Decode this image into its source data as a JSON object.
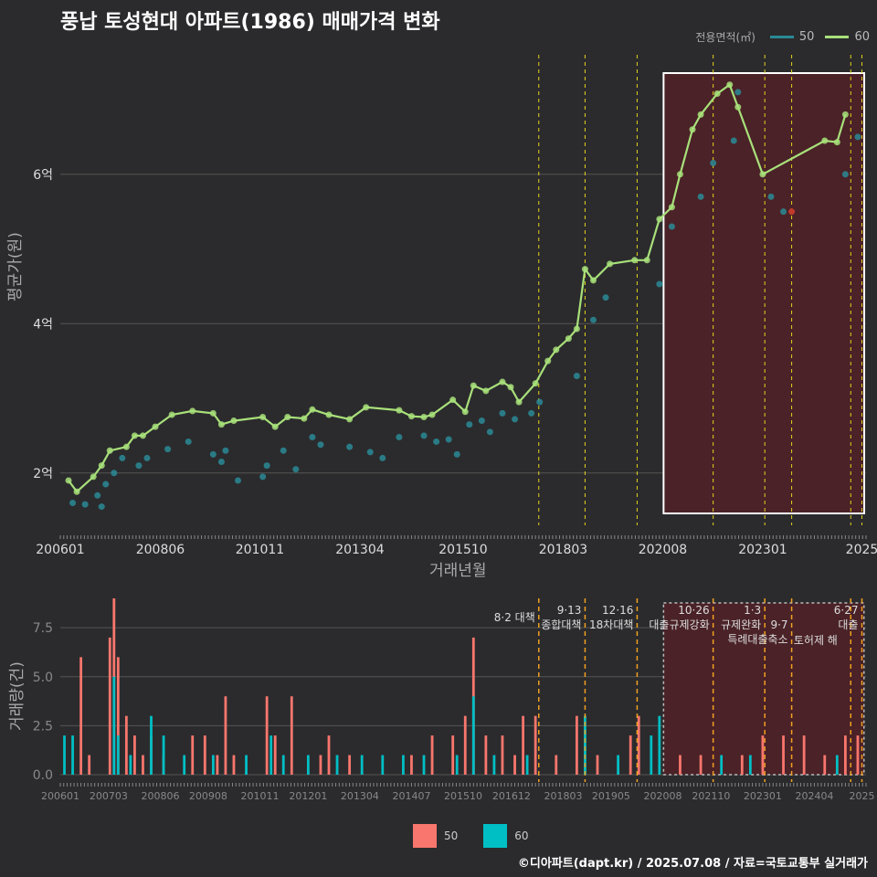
{
  "title": "풍납 토성현대 아파트(1986) 매매가격 변화",
  "legend": {
    "label": "전용면적(㎡)",
    "items": [
      {
        "name": "50",
        "color": "#2a8a96"
      },
      {
        "name": "60",
        "color": "#a8e07a"
      }
    ]
  },
  "bar_legend": {
    "items": [
      {
        "name": "50",
        "color": "#f8766d"
      },
      {
        "name": "60",
        "color": "#00bfc4"
      }
    ]
  },
  "credit": "©디아파트(dapt.kr) / 2025.07.08 / 자료=국토교통부 실거래가",
  "chart_data": [
    {
      "type": "line",
      "ylabel": "평균가(원)",
      "xlabel": "거래년월",
      "yticks": [
        {
          "v": 2,
          "label": "2억"
        },
        {
          "v": 4,
          "label": "4억"
        },
        {
          "v": 6,
          "label": "6억"
        }
      ],
      "xticks": [
        "200601",
        "200806",
        "201011",
        "201304",
        "201510",
        "201803",
        "202008",
        "202301",
        "2025"
      ],
      "xrange": [
        2006.0,
        2025.5
      ],
      "ylim": [
        1.3,
        7.6
      ],
      "series": [
        {
          "name": "60",
          "line": [
            [
              2006.2,
              1.9
            ],
            [
              2006.4,
              1.75
            ],
            [
              2006.8,
              1.95
            ],
            [
              2007.0,
              2.1
            ],
            [
              2007.2,
              2.3
            ],
            [
              2007.6,
              2.35
            ],
            [
              2007.8,
              2.5
            ],
            [
              2008.0,
              2.5
            ],
            [
              2008.3,
              2.62
            ],
            [
              2008.7,
              2.78
            ],
            [
              2009.2,
              2.83
            ],
            [
              2009.7,
              2.8
            ],
            [
              2009.9,
              2.65
            ],
            [
              2010.2,
              2.7
            ],
            [
              2010.9,
              2.75
            ],
            [
              2011.2,
              2.62
            ],
            [
              2011.5,
              2.75
            ],
            [
              2011.9,
              2.73
            ],
            [
              2012.1,
              2.85
            ],
            [
              2012.5,
              2.78
            ],
            [
              2013.0,
              2.72
            ],
            [
              2013.4,
              2.88
            ],
            [
              2014.2,
              2.84
            ],
            [
              2014.5,
              2.76
            ],
            [
              2014.8,
              2.75
            ],
            [
              2015.0,
              2.78
            ],
            [
              2015.5,
              2.98
            ],
            [
              2015.8,
              2.82
            ],
            [
              2016.0,
              3.17
            ],
            [
              2016.3,
              3.1
            ],
            [
              2016.7,
              3.22
            ],
            [
              2016.9,
              3.15
            ],
            [
              2017.1,
              2.95
            ],
            [
              2017.5,
              3.2
            ],
            [
              2017.8,
              3.5
            ],
            [
              2018.0,
              3.65
            ],
            [
              2018.3,
              3.8
            ],
            [
              2018.5,
              3.93
            ],
            [
              2018.7,
              4.73
            ],
            [
              2018.9,
              4.58
            ],
            [
              2019.3,
              4.8
            ],
            [
              2019.9,
              4.85
            ],
            [
              2020.2,
              4.85
            ],
            [
              2020.5,
              5.4
            ],
            [
              2020.8,
              5.56
            ],
            [
              2021.0,
              6.0
            ],
            [
              2021.3,
              6.6
            ],
            [
              2021.5,
              6.8
            ],
            [
              2021.9,
              7.08
            ],
            [
              2022.2,
              7.2
            ],
            [
              2022.4,
              6.9
            ],
            [
              2023.0,
              6.0
            ],
            [
              2024.5,
              6.45
            ],
            [
              2024.8,
              6.43
            ],
            [
              2025.0,
              6.8
            ]
          ]
        },
        {
          "name": "50",
          "line": [
            [
              2018.9,
              4.05
            ],
            [
              2019.2,
              4.35
            ],
            [
              2020.5,
              4.53
            ],
            [
              2020.8,
              5.3
            ],
            [
              2021.5,
              5.7
            ],
            [
              2021.8,
              6.15
            ],
            [
              2022.3,
              6.45
            ],
            [
              2022.4,
              7.1
            ],
            [
              2023.2,
              5.7
            ],
            [
              2023.5,
              5.5
            ],
            [
              2025.0,
              6.0
            ],
            [
              2025.3,
              6.5
            ]
          ]
        }
      ],
      "annotation_box": {
        "from": 2020.6,
        "to": 2025.5
      },
      "vlines": [
        2017.58,
        2018.7,
        2019.96,
        2021.8,
        2023.05,
        2023.7,
        2025.13,
        2025.4
      ]
    },
    {
      "type": "bar",
      "ylabel": "거래량(건)",
      "yticks": [
        "0.0",
        "2.5",
        "5.0",
        "7.5"
      ],
      "ylim": [
        0,
        9
      ],
      "xticks": [
        "200601",
        "200703",
        "200806",
        "200908",
        "201011",
        "201201",
        "201304",
        "201407",
        "201510",
        "201612",
        "201803",
        "201905",
        "202008",
        "202110",
        "202301",
        "202404",
        "2025"
      ],
      "series": [
        {
          "name": "50",
          "color": "#f8766d"
        },
        {
          "name": "60",
          "color": "#00bfc4"
        }
      ],
      "annotations": [
        {
          "x": 2017.58,
          "lines": [
            "8·2 대책"
          ]
        },
        {
          "x": 2018.7,
          "lines": [
            "9·13",
            "종합대책"
          ]
        },
        {
          "x": 2019.96,
          "lines": [
            "12·16",
            "18차대책"
          ]
        },
        {
          "x": 2021.8,
          "lines": [
            "10·26",
            "대출규제강화"
          ]
        },
        {
          "x": 2023.05,
          "lines": [
            "1·3",
            "규제완화"
          ]
        },
        {
          "x": 2023.7,
          "lines": [
            "9·7",
            "특례대출축소"
          ]
        },
        {
          "x": 2024.9,
          "lines": [
            "토허제 해"
          ]
        },
        {
          "x": 2025.4,
          "lines": [
            "6·27",
            "대출"
          ]
        }
      ]
    }
  ]
}
